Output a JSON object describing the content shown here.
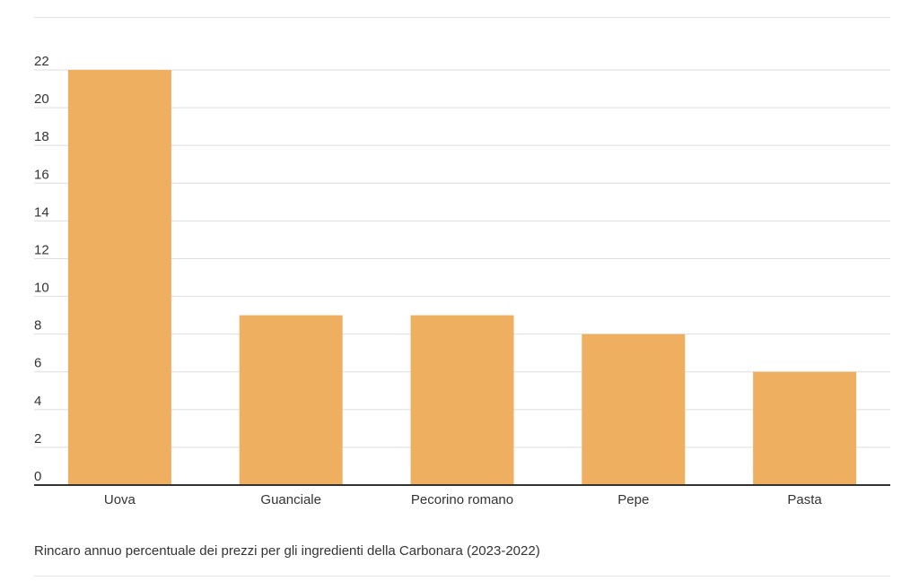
{
  "chart_data": {
    "type": "bar",
    "categories": [
      "Uova",
      "Guanciale",
      "Pecorino romano",
      "Pepe",
      "Pasta"
    ],
    "values": [
      22,
      9,
      9,
      8,
      6
    ],
    "ylim": [
      0,
      22
    ],
    "yticks": [
      0,
      2,
      4,
      6,
      8,
      10,
      12,
      14,
      16,
      18,
      20,
      22
    ],
    "grid": true,
    "bar_color": "#eeb060",
    "caption": "Rincaro annuo percentuale dei prezzi per gli ingredienti della Carbonara (2023-2022)"
  }
}
